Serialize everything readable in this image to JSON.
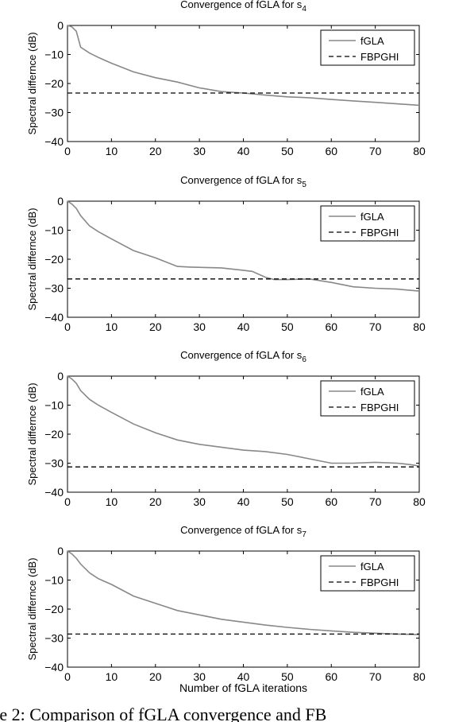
{
  "chart_data": [
    {
      "type": "line",
      "title": "Convergence of fGLA for s",
      "title_subscript": "4",
      "xlabel": "",
      "ylabel": "Spectral differnce (dB)",
      "xlim": [
        0,
        80
      ],
      "ylim": [
        -40,
        0
      ],
      "xticks": [
        "0",
        "10",
        "20",
        "30",
        "40",
        "50",
        "60",
        "70",
        "80"
      ],
      "yticks": [
        "0",
        "−10",
        "−20",
        "−30",
        "−40"
      ],
      "grid": false,
      "legend_position": "top-right",
      "series": [
        {
          "name": "fGLA",
          "style": "solid",
          "color": "#888888",
          "x": [
            0,
            1,
            2,
            3,
            5,
            7,
            10,
            15,
            20,
            25,
            30,
            35,
            40,
            45,
            50,
            55,
            60,
            65,
            70,
            75,
            80
          ],
          "y": [
            0,
            -0.5,
            -2,
            -7.5,
            -9.5,
            -11,
            -13,
            -16,
            -18,
            -19.5,
            -21.5,
            -22.8,
            -23.3,
            -24,
            -24.6,
            -24.9,
            -25.5,
            -26,
            -26.5,
            -27,
            -27.5
          ]
        },
        {
          "name": "FBPGHI",
          "style": "dashed",
          "color": "#000000",
          "x": [
            0,
            80
          ],
          "y": [
            -23.3,
            -23.3
          ]
        }
      ]
    },
    {
      "type": "line",
      "title": "Convergence of fGLA for s",
      "title_subscript": "5",
      "xlabel": "",
      "ylabel": "Spectral differnce (dB)",
      "xlim": [
        0,
        80
      ],
      "ylim": [
        -40,
        0
      ],
      "xticks": [
        "0",
        "10",
        "20",
        "30",
        "40",
        "50",
        "60",
        "70",
        "80"
      ],
      "yticks": [
        "0",
        "−10",
        "−20",
        "−30",
        "−40"
      ],
      "grid": false,
      "legend_position": "top-right",
      "series": [
        {
          "name": "fGLA",
          "style": "solid",
          "color": "#888888",
          "x": [
            0,
            1,
            2,
            3,
            5,
            7,
            10,
            15,
            20,
            25,
            28,
            30,
            35,
            40,
            42,
            45,
            47,
            50,
            55,
            60,
            65,
            70,
            75,
            80
          ],
          "y": [
            0,
            -1,
            -2.5,
            -5,
            -8.5,
            -10.5,
            -13,
            -17,
            -19.5,
            -22.5,
            -22.7,
            -22.8,
            -23,
            -23.8,
            -24.2,
            -26.2,
            -27,
            -27,
            -26.8,
            -28,
            -29.5,
            -30,
            -30.3,
            -31
          ]
        },
        {
          "name": "FBPGHI",
          "style": "dashed",
          "color": "#000000",
          "x": [
            0,
            80
          ],
          "y": [
            -26.8,
            -26.8
          ]
        }
      ]
    },
    {
      "type": "line",
      "title": "Convergence of fGLA for s",
      "title_subscript": "6",
      "xlabel": "",
      "ylabel": "Spectral differnce (dB)",
      "xlim": [
        0,
        80
      ],
      "ylim": [
        -40,
        0
      ],
      "xticks": [
        "0",
        "10",
        "20",
        "30",
        "40",
        "50",
        "60",
        "70",
        "80"
      ],
      "yticks": [
        "0",
        "−10",
        "−20",
        "−30",
        "−40"
      ],
      "grid": false,
      "legend_position": "top-right",
      "series": [
        {
          "name": "fGLA",
          "style": "solid",
          "color": "#888888",
          "x": [
            0,
            1,
            2,
            3,
            5,
            7,
            10,
            15,
            20,
            25,
            30,
            35,
            40,
            45,
            50,
            55,
            60,
            65,
            70,
            75,
            78,
            80
          ],
          "y": [
            0,
            -1,
            -2.5,
            -5,
            -8,
            -10,
            -12.5,
            -16.5,
            -19.5,
            -22,
            -23.5,
            -24.5,
            -25.5,
            -26,
            -27,
            -28.5,
            -30,
            -30,
            -29.7,
            -30,
            -30.5,
            -31
          ]
        },
        {
          "name": "FBPGHI",
          "style": "dashed",
          "color": "#000000",
          "x": [
            0,
            80
          ],
          "y": [
            -31.3,
            -31.3
          ]
        }
      ]
    },
    {
      "type": "line",
      "title": "Convergence of fGLA for s",
      "title_subscript": "7",
      "xlabel": "Number of fGLA iterations",
      "ylabel": "Spectral differnce (dB)",
      "xlim": [
        0,
        80
      ],
      "ylim": [
        -40,
        0
      ],
      "xticks": [
        "0",
        "10",
        "20",
        "30",
        "40",
        "50",
        "60",
        "70",
        "80"
      ],
      "yticks": [
        "0",
        "−10",
        "−20",
        "−30",
        "−40"
      ],
      "grid": false,
      "legend_position": "top-right",
      "series": [
        {
          "name": "fGLA",
          "style": "solid",
          "color": "#888888",
          "x": [
            0,
            1,
            2,
            3,
            5,
            7,
            10,
            15,
            20,
            25,
            30,
            35,
            40,
            45,
            50,
            55,
            60,
            65,
            70,
            75,
            80
          ],
          "y": [
            0,
            -1,
            -2.5,
            -4.5,
            -7.5,
            -9.5,
            -11.5,
            -15.5,
            -18,
            -20.5,
            -22,
            -23.5,
            -24.5,
            -25.5,
            -26.3,
            -27,
            -27.5,
            -28,
            -28.3,
            -28.6,
            -28.8
          ]
        },
        {
          "name": "FBPGHI",
          "style": "dashed",
          "color": "#000000",
          "x": [
            0,
            80
          ],
          "y": [
            -28.6,
            -28.6
          ]
        }
      ]
    }
  ],
  "caption": {
    "text": "re 2: Comparison of fGLA convergence and FB"
  }
}
